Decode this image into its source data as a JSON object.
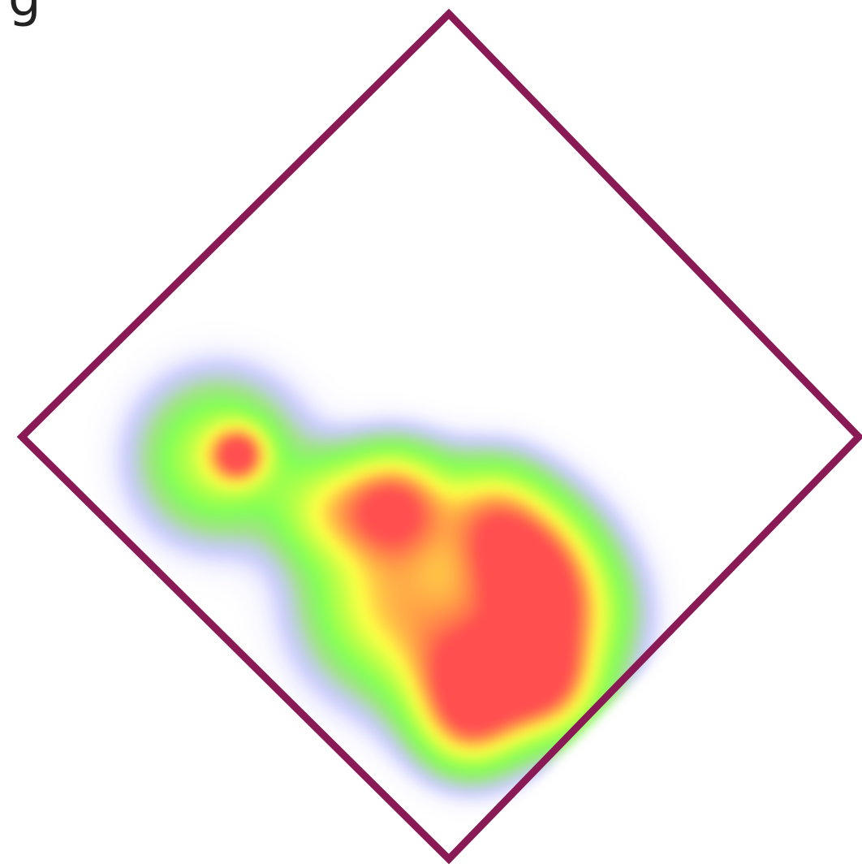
{
  "chart_data": {
    "type": "heatmap",
    "title": "",
    "xlabel": "",
    "ylabel": "",
    "shape": "rotated-square",
    "grid": false,
    "legend": "none",
    "axis_range": [
      0,
      1
    ],
    "border_color": "#8a1a55",
    "color_scale": [
      "#9999ff",
      "#80ff55",
      "#ffff44",
      "#ff5050"
    ],
    "hotspots": [
      {
        "u": 0.24,
        "v": 0.75,
        "intensity": 0.9,
        "spread": 0.03
      },
      {
        "u": 0.22,
        "v": 0.78,
        "intensity": 0.5,
        "spread": 0.08
      },
      {
        "u": 0.5,
        "v": 0.62,
        "intensity": 1.0,
        "spread": 0.06
      },
      {
        "u": 0.62,
        "v": 0.74,
        "intensity": 0.7,
        "spread": 0.09
      },
      {
        "u": 0.73,
        "v": 0.53,
        "intensity": 0.98,
        "spread": 0.07
      },
      {
        "u": 0.8,
        "v": 0.74,
        "intensity": 1.0,
        "spread": 0.07
      },
      {
        "u": 0.83,
        "v": 0.56,
        "intensity": 0.85,
        "spread": 0.075
      },
      {
        "u": 0.9,
        "v": 0.66,
        "intensity": 0.95,
        "spread": 0.06
      },
      {
        "u": 0.63,
        "v": 0.51,
        "intensity": 0.55,
        "spread": 0.06
      },
      {
        "u": 0.86,
        "v": 0.8,
        "intensity": 0.6,
        "spread": 0.055
      },
      {
        "u": 0.42,
        "v": 0.71,
        "intensity": 0.45,
        "spread": 0.06
      }
    ]
  },
  "page": {
    "corner_glyph": "g"
  }
}
